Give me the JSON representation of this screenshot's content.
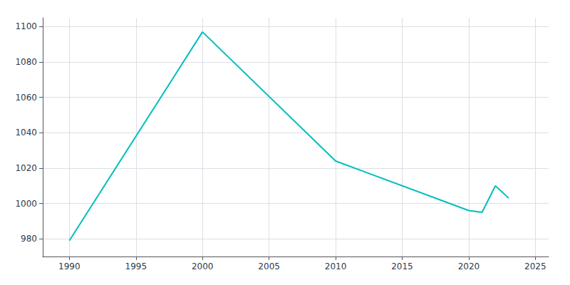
{
  "chart_data": {
    "type": "line",
    "x": [
      1990,
      2000,
      2010,
      2020,
      2021,
      2022,
      2023
    ],
    "values": [
      979,
      1097,
      1024,
      996,
      995,
      1010,
      1003
    ],
    "color": "#00BEBE",
    "xlim": [
      1988,
      2026
    ],
    "xticks": [
      1990,
      1995,
      2000,
      2005,
      2010,
      2015,
      2020,
      2025
    ],
    "ylim": [
      970,
      1105
    ],
    "yticks": [
      980,
      1000,
      1020,
      1040,
      1060,
      1080,
      1100
    ],
    "grid": true
  }
}
